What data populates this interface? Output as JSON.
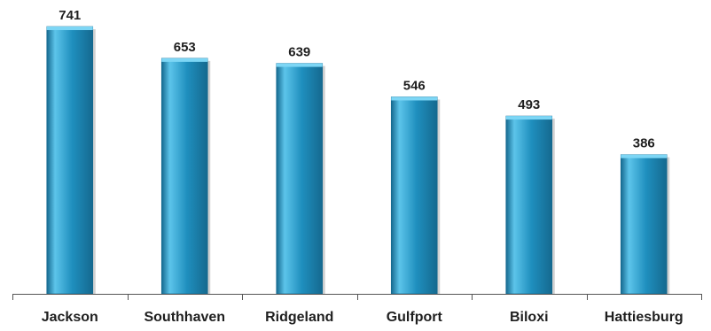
{
  "chart_data": {
    "type": "bar",
    "categories": [
      "Jackson",
      "Southhaven",
      "Ridgeland",
      "Gulfport",
      "Biloxi",
      "Hattiesburg"
    ],
    "values": [
      741,
      653,
      639,
      546,
      493,
      386
    ],
    "title": "",
    "xlabel": "",
    "ylabel": "",
    "ylim": [
      0,
      741
    ],
    "grid": false,
    "data_labels": true,
    "colors": {
      "bar": "#1f8fbe",
      "bar_light": "#5cc4ea",
      "bar_dark": "#15698f",
      "bar_top": "#7dd6f5",
      "axis": "#555555",
      "text": "#1f1f1f"
    }
  }
}
